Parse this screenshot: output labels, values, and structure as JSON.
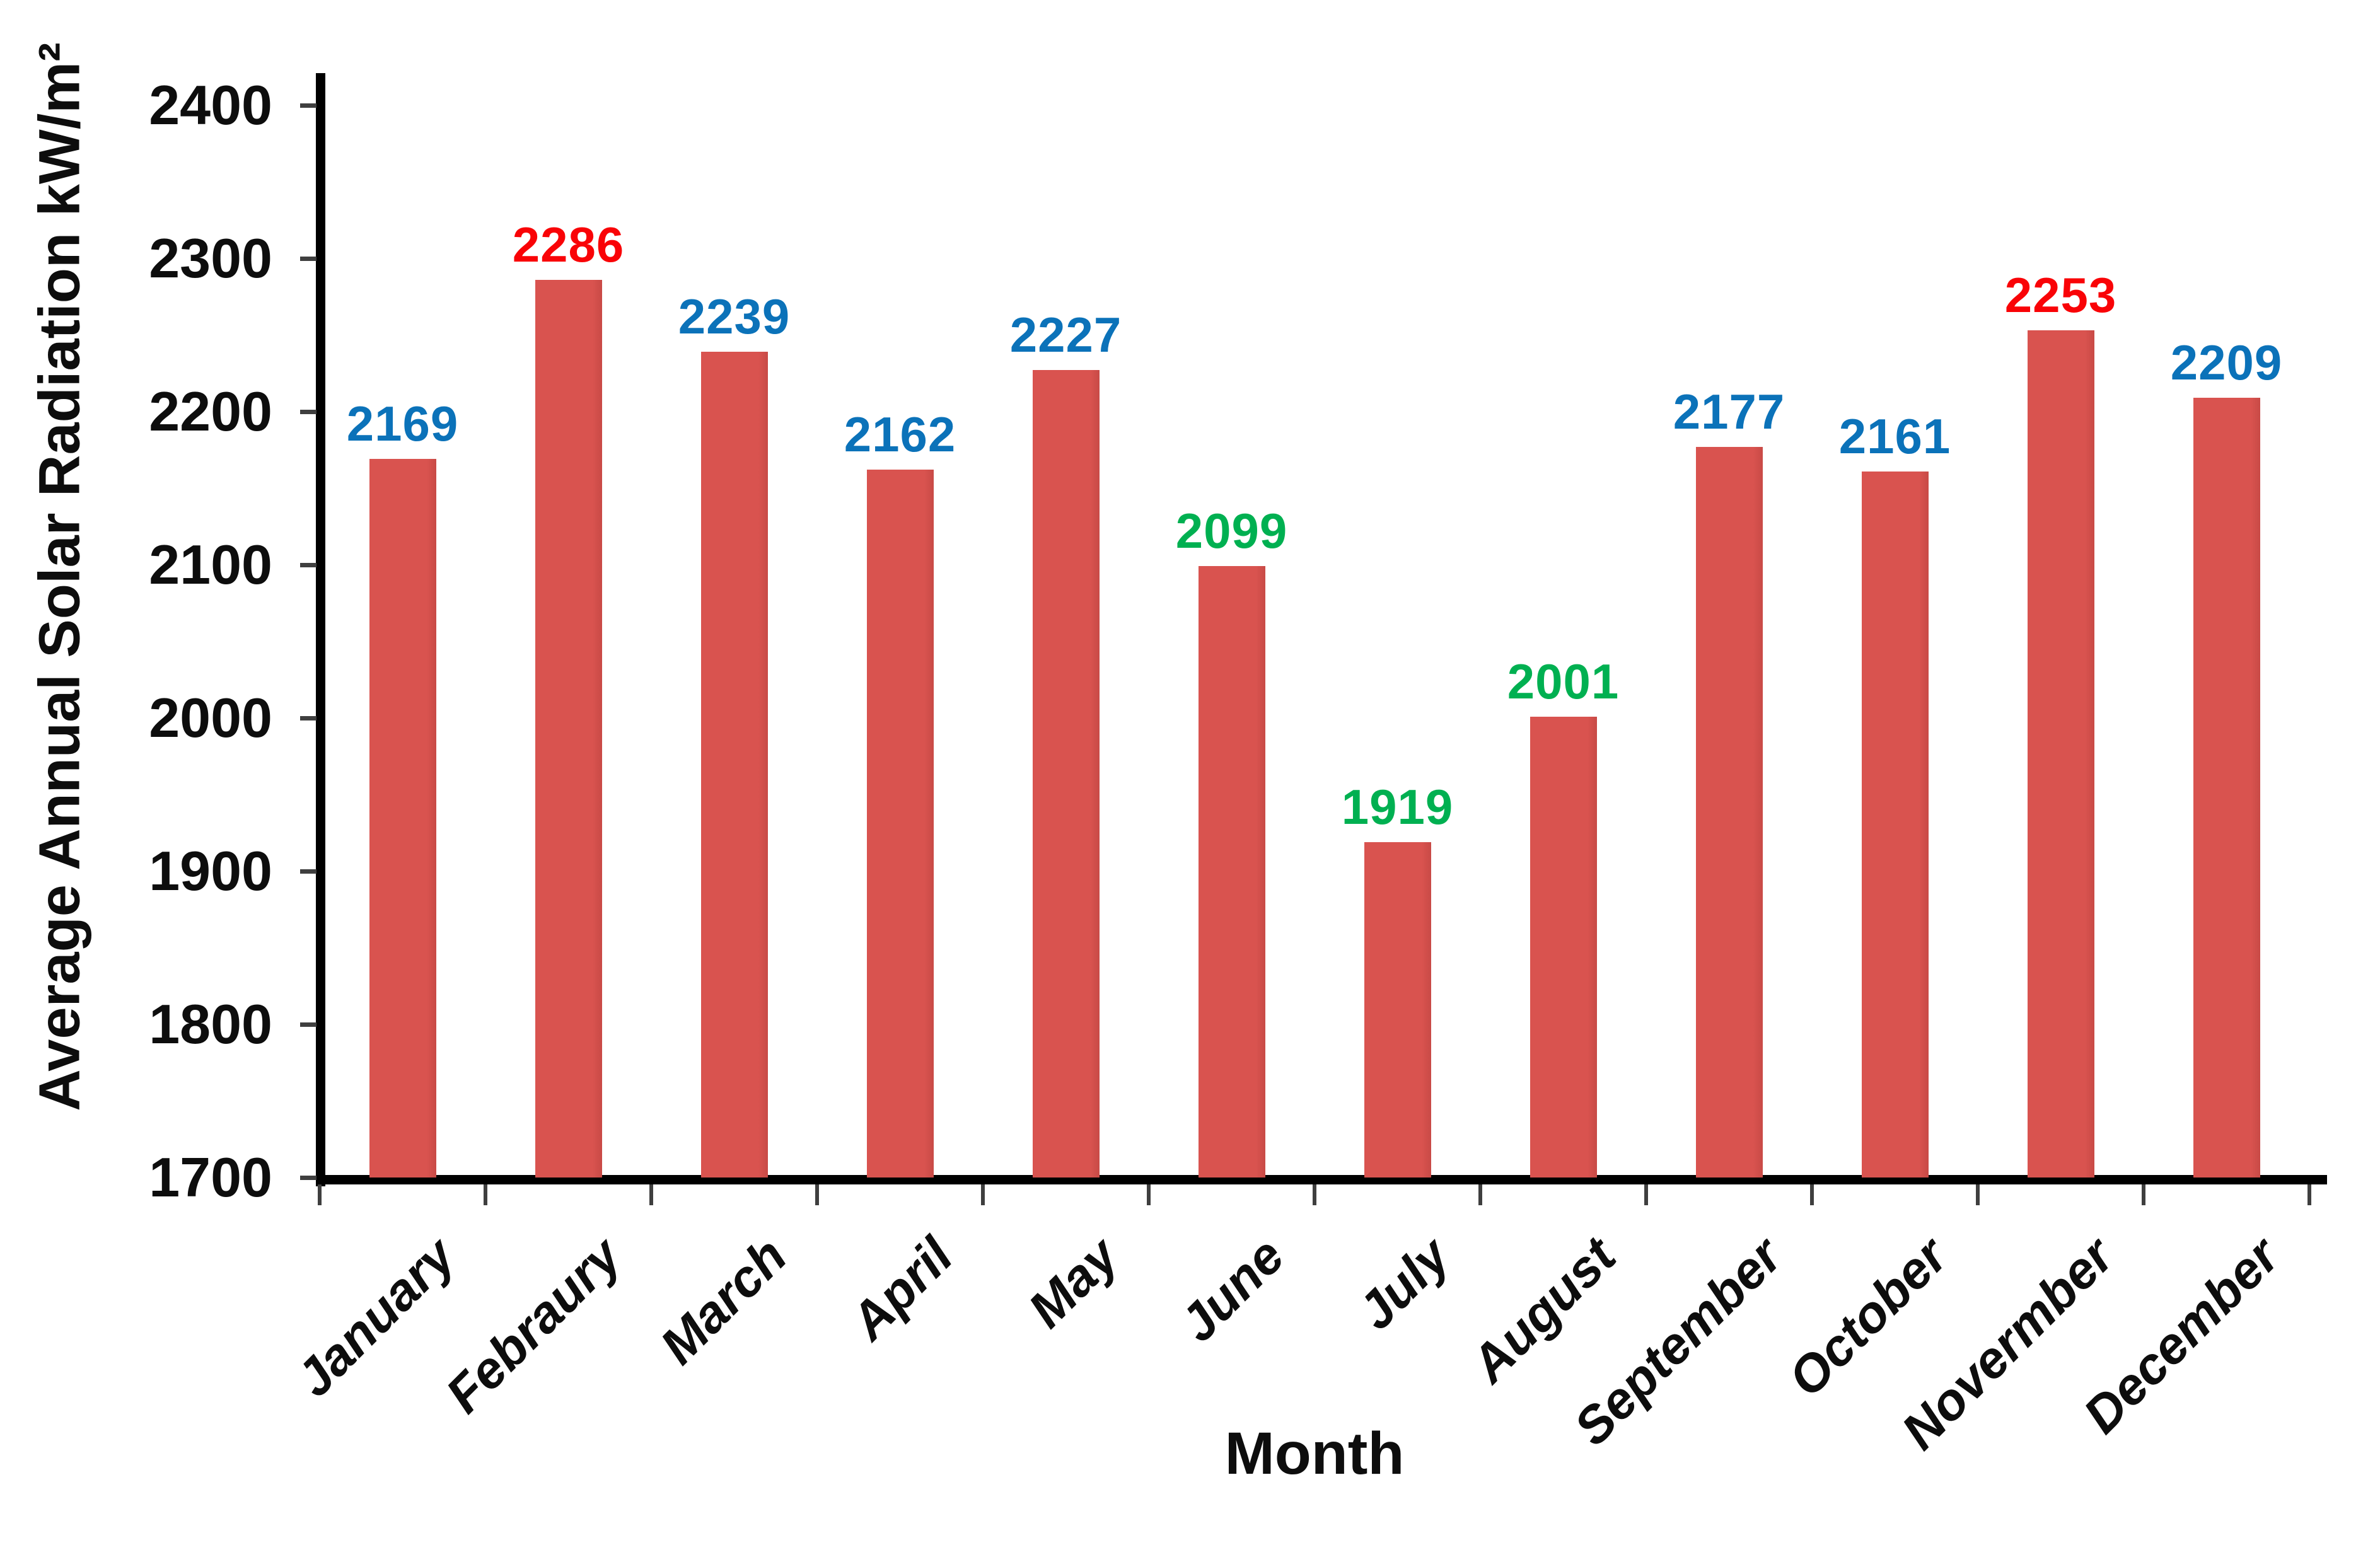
{
  "chart_data": {
    "type": "bar",
    "title": "",
    "xlabel": "Month",
    "ylabel": "Average Annual Solar Radiation kW/m²",
    "categories": [
      "January",
      "Febraury",
      "March",
      "April",
      "May",
      "June",
      "July",
      "August",
      "September",
      "October",
      "Novermber",
      "December"
    ],
    "values": [
      2169,
      2286,
      2239,
      2162,
      2227,
      2099,
      1919,
      2001,
      2177,
      2161,
      2253,
      2209
    ],
    "value_label_colors": [
      "#0b72b9",
      "#f90307",
      "#0b72b9",
      "#0b72b9",
      "#0b72b9",
      "#00b051",
      "#00b051",
      "#00b051",
      "#0b72b9",
      "#0b72b9",
      "#f90307",
      "#0b72b9"
    ],
    "bar_color": "#d9534f",
    "yticks": [
      1700,
      1800,
      1900,
      2000,
      2100,
      2200,
      2300,
      2400
    ],
    "ylim": [
      1700,
      2430
    ],
    "grid": false,
    "legend": null,
    "axis_color": "#000000",
    "tick_color": "#3f3f3f"
  }
}
